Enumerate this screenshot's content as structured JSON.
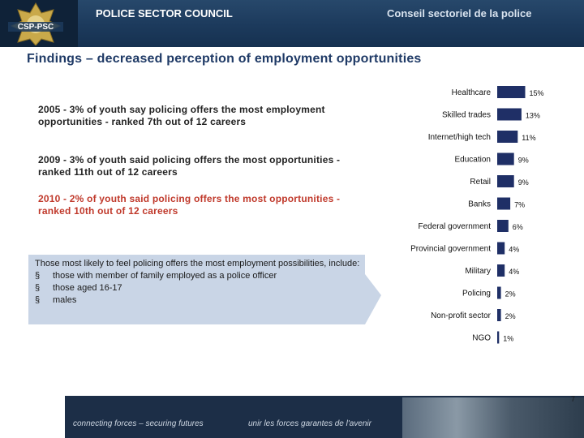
{
  "header": {
    "logo_text": "CSP-PSC",
    "title_en": "POLICE SECTOR COUNCIL",
    "title_fr": "Conseil  sectoriel de la police"
  },
  "title": "Findings – decreased perception of employment opportunities",
  "findings": [
    "2005 - 3% of youth say policing offers the most employment opportunities - ranked 7th out of 12 careers",
    "2009 - 3% of youth said policing offers the most opportunities - ranked 11th out of 12 careers",
    "2010 - 2% of youth said policing offers the most opportunities - ranked 10th out of 12 careers"
  ],
  "callout": {
    "text": "Those most likely to feel policing offers the most employment possibilities, include:",
    "bullets": [
      "those with member of family employed as a police officer",
      "those aged 16-17",
      "males"
    ]
  },
  "chart_data": {
    "type": "bar",
    "orientation": "horizontal",
    "categories": [
      "Healthcare",
      "Skilled trades",
      "Internet/high tech",
      "Education",
      "Retail",
      "Banks",
      "Federal government",
      "Provincial  government",
      "Military",
      "Policing",
      "Non-profit sector",
      "NGO"
    ],
    "values": [
      15,
      13,
      11,
      9,
      9,
      7,
      6,
      4,
      4,
      2,
      2,
      1
    ],
    "labels": [
      "15%",
      "13%",
      "11%",
      "9%",
      "9%",
      "7%",
      "6%",
      "4%",
      "4%",
      "2%",
      "2%",
      "1%"
    ],
    "bar_color": "#1f2f66"
  },
  "footer": {
    "slogan_en": "connecting forces – securing futures",
    "slogan_fr": "unir les forces garantes de l'avenir",
    "page_number": "7"
  }
}
